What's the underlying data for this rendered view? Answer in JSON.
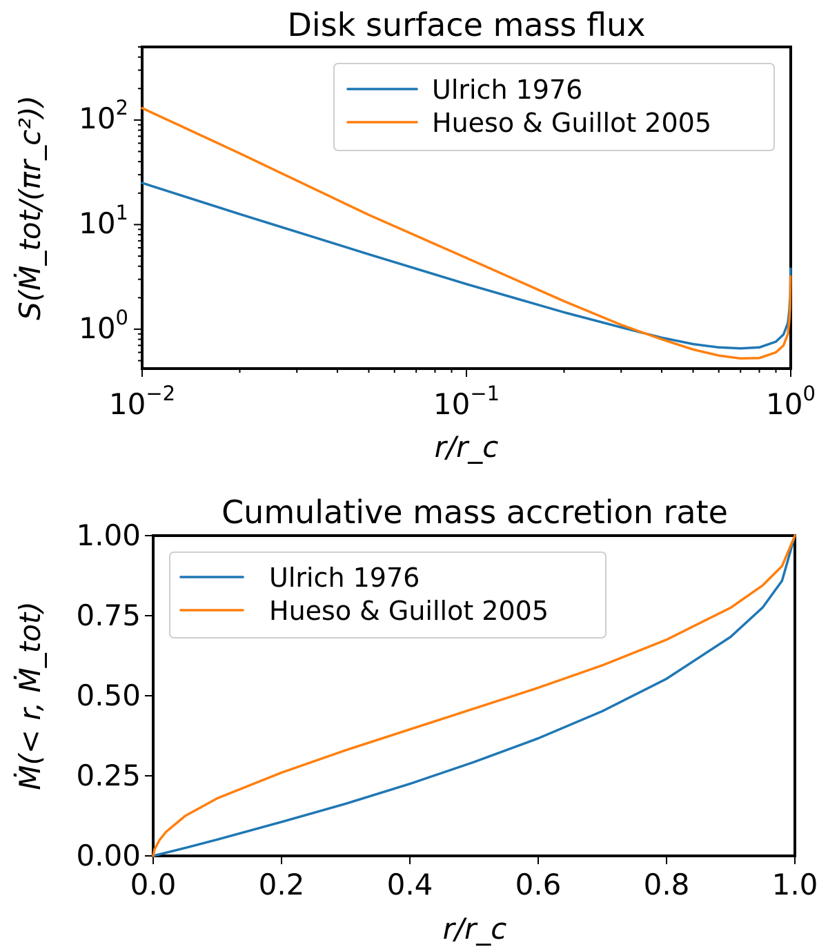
{
  "chart_data": [
    {
      "type": "line",
      "title": "Disk surface mass flux",
      "xlabel": "r/r_c",
      "ylabel": "S(Ṁ_tot/(πr_c²))",
      "xscale": "log",
      "yscale": "log",
      "xlim": [
        0.01,
        1.0
      ],
      "ylim": [
        0.42,
        500
      ],
      "x_ticks": [
        {
          "base": "10",
          "exp": "−2",
          "value": 0.01
        },
        {
          "base": "10",
          "exp": "−1",
          "value": 0.1
        },
        {
          "base": "10",
          "exp": "0",
          "value": 1.0
        }
      ],
      "y_ticks": [
        {
          "base": "10",
          "exp": "0",
          "value": 1
        },
        {
          "base": "10",
          "exp": "1",
          "value": 10
        },
        {
          "base": "10",
          "exp": "2",
          "value": 100
        }
      ],
      "legend_position": "top-right",
      "series": [
        {
          "name": "Ulrich 1976",
          "color": "#1f77b4",
          "x": [
            0.01,
            0.02,
            0.05,
            0.1,
            0.2,
            0.3,
            0.4,
            0.5,
            0.6,
            0.7,
            0.8,
            0.9,
            0.95,
            0.98,
            0.99,
            0.995,
            0.999
          ],
          "y": [
            25,
            12.6,
            5.2,
            2.7,
            1.45,
            1.04,
            0.83,
            0.72,
            0.67,
            0.655,
            0.67,
            0.76,
            0.89,
            1.15,
            1.5,
            2.0,
            3.8
          ]
        },
        {
          "name": "Hueso & Guillot 2005",
          "color": "#ff7f0e",
          "x": [
            0.01,
            0.02,
            0.05,
            0.1,
            0.2,
            0.3,
            0.4,
            0.5,
            0.6,
            0.7,
            0.8,
            0.9,
            0.95,
            0.98,
            0.99,
            0.995,
            0.999
          ],
          "y": [
            130,
            48,
            12.4,
            4.8,
            1.85,
            1.1,
            0.8,
            0.64,
            0.56,
            0.525,
            0.53,
            0.6,
            0.7,
            0.9,
            1.2,
            1.6,
            3.2
          ]
        }
      ]
    },
    {
      "type": "line",
      "title": "Cumulative mass accretion rate",
      "xlabel": "r/r_c",
      "ylabel": "Ṁ(< r, Ṁ_tot)",
      "xscale": "linear",
      "yscale": "linear",
      "xlim": [
        0.0,
        1.0
      ],
      "ylim": [
        0.0,
        1.0
      ],
      "x_ticks": [
        {
          "label": "0.0",
          "value": 0.0
        },
        {
          "label": "0.2",
          "value": 0.2
        },
        {
          "label": "0.4",
          "value": 0.4
        },
        {
          "label": "0.6",
          "value": 0.6
        },
        {
          "label": "0.8",
          "value": 0.8
        },
        {
          "label": "1.0",
          "value": 1.0
        }
      ],
      "y_ticks": [
        {
          "label": "0.00",
          "value": 0.0
        },
        {
          "label": "0.25",
          "value": 0.25
        },
        {
          "label": "0.50",
          "value": 0.5
        },
        {
          "label": "0.75",
          "value": 0.75
        },
        {
          "label": "1.00",
          "value": 1.0
        }
      ],
      "legend_position": "top-left",
      "series": [
        {
          "name": "Ulrich 1976",
          "color": "#1f77b4",
          "x": [
            0.0,
            0.05,
            0.1,
            0.2,
            0.3,
            0.4,
            0.5,
            0.6,
            0.7,
            0.8,
            0.9,
            0.95,
            0.98,
            1.0
          ],
          "y": [
            0.0,
            0.025,
            0.051,
            0.106,
            0.163,
            0.225,
            0.293,
            0.367,
            0.452,
            0.553,
            0.684,
            0.776,
            0.859,
            1.0
          ]
        },
        {
          "name": "Hueso & Guillot 2005",
          "color": "#ff7f0e",
          "x": [
            0.0,
            0.002,
            0.01,
            0.02,
            0.05,
            0.1,
            0.2,
            0.3,
            0.4,
            0.5,
            0.6,
            0.7,
            0.8,
            0.9,
            0.95,
            0.98,
            1.0
          ],
          "y": [
            0.0,
            0.02,
            0.05,
            0.075,
            0.125,
            0.18,
            0.26,
            0.33,
            0.395,
            0.46,
            0.525,
            0.595,
            0.675,
            0.775,
            0.845,
            0.905,
            1.0
          ]
        }
      ]
    }
  ]
}
